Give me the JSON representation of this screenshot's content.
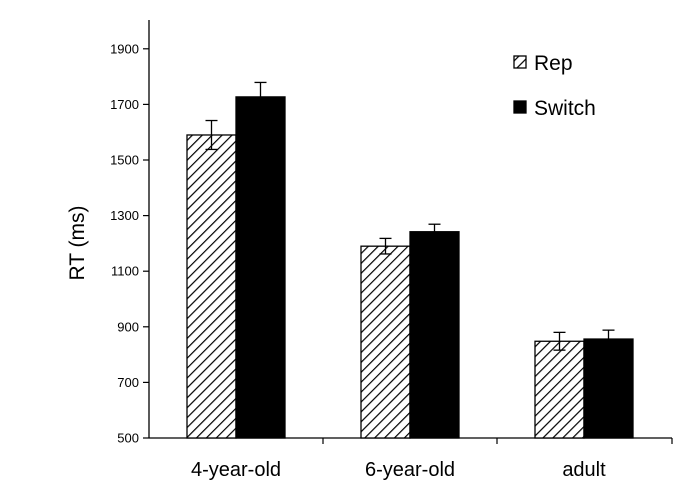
{
  "chart_data": {
    "type": "bar",
    "title": "",
    "xlabel": "",
    "ylabel": "RT (ms)",
    "categories": [
      "4-year-old",
      "6-year-old",
      "adult"
    ],
    "ylim": [
      500,
      2000
    ],
    "yticks": [
      500,
      700,
      900,
      1100,
      1300,
      1500,
      1700,
      1900
    ],
    "grid": false,
    "legend_position": "top-right",
    "series": [
      {
        "name": "Rep",
        "values": [
          1590,
          1190,
          848
        ],
        "errors": [
          52,
          28,
          32
        ],
        "fill": "hatched",
        "color": "#000000"
      },
      {
        "name": "Switch",
        "values": [
          1727,
          1242,
          856
        ],
        "errors": [
          52,
          27,
          32
        ],
        "fill": "solid",
        "color": "#000000"
      }
    ]
  }
}
